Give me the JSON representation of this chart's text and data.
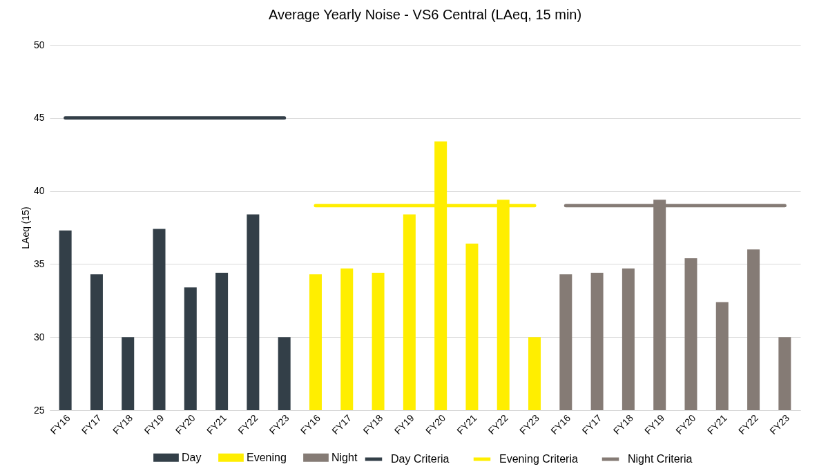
{
  "chart_data": {
    "type": "bar",
    "title": "Average Yearly Noise - VS6 Central (LAeq, 15 min)",
    "ylabel": "LAeq (15)",
    "categories": [
      "FY16",
      "FY17",
      "FY18",
      "FY19",
      "FY20",
      "FY21",
      "FY22",
      "FY23",
      "FY16",
      "FY17",
      "FY18",
      "FY19",
      "FY20",
      "FY21",
      "FY22",
      "FY23",
      "FY16",
      "FY17",
      "FY18",
      "FY19",
      "FY20",
      "FY21",
      "FY22",
      "FY23"
    ],
    "series": [
      {
        "name": "Day",
        "color": "#333f48",
        "values": [
          37.3,
          34.3,
          30.0,
          37.4,
          33.4,
          34.4,
          38.4,
          30.0,
          null,
          null,
          null,
          null,
          null,
          null,
          null,
          null,
          null,
          null,
          null,
          null,
          null,
          null,
          null,
          null
        ]
      },
      {
        "name": "Evening",
        "color": "#ffee00",
        "values": [
          null,
          null,
          null,
          null,
          null,
          null,
          null,
          null,
          34.3,
          34.7,
          34.4,
          38.4,
          43.4,
          36.4,
          39.4,
          30.0,
          null,
          null,
          null,
          null,
          null,
          null,
          null,
          null
        ]
      },
      {
        "name": "Night",
        "color": "#857b75",
        "values": [
          null,
          null,
          null,
          null,
          null,
          null,
          null,
          null,
          null,
          null,
          null,
          null,
          null,
          null,
          null,
          null,
          34.3,
          34.4,
          34.7,
          39.4,
          35.4,
          32.4,
          36.0,
          30.0
        ]
      },
      {
        "name": "Day Criteria",
        "type": "line",
        "color": "#333f48",
        "values": [
          45,
          45,
          45,
          45,
          45,
          45,
          45,
          45,
          null,
          null,
          null,
          null,
          null,
          null,
          null,
          null,
          null,
          null,
          null,
          null,
          null,
          null,
          null,
          null
        ]
      },
      {
        "name": "Evening Criteria",
        "type": "line",
        "color": "#ffee00",
        "values": [
          null,
          null,
          null,
          null,
          null,
          null,
          null,
          null,
          39,
          39,
          39,
          39,
          39,
          39,
          39,
          39,
          null,
          null,
          null,
          null,
          null,
          null,
          null,
          null
        ]
      },
      {
        "name": "Night Criteria",
        "type": "line",
        "color": "#857b75",
        "values": [
          null,
          null,
          null,
          null,
          null,
          null,
          null,
          null,
          null,
          null,
          null,
          null,
          null,
          null,
          null,
          null,
          39,
          39,
          39,
          39,
          39,
          39,
          39,
          39
        ]
      }
    ],
    "ylim": [
      25,
      50
    ],
    "yticks": [
      25,
      30,
      35,
      40,
      45,
      50
    ],
    "grid": "y",
    "legend": "bottom"
  }
}
